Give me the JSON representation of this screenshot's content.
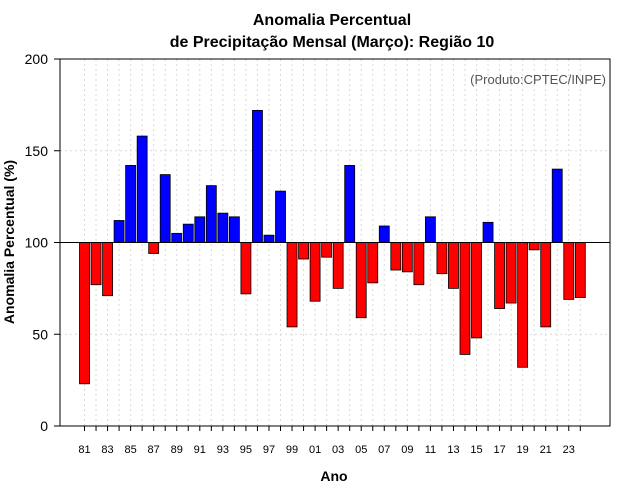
{
  "chart_data": {
    "type": "bar",
    "title_line1": "Anomalia Percentual",
    "title_line2": "de Precipitação Mensal (Março): Região 10",
    "xlabel": "Ano",
    "ylabel": "Anomalia Percentual (%)",
    "credit": "(Produto:CPTEC/INPE)",
    "ylim": [
      0,
      200
    ],
    "yticks": [
      0,
      50,
      100,
      150,
      200
    ],
    "baseline": 100,
    "xtick_labels": [
      "81",
      "83",
      "85",
      "87",
      "89",
      "91",
      "93",
      "95",
      "97",
      "99",
      "01",
      "03",
      "05",
      "07",
      "09",
      "11",
      "13",
      "15",
      "17",
      "19",
      "21",
      "23"
    ],
    "categories": [
      "81",
      "82",
      "83",
      "84",
      "85",
      "86",
      "87",
      "88",
      "89",
      "90",
      "91",
      "92",
      "93",
      "94",
      "95",
      "96",
      "97",
      "98",
      "99",
      "00",
      "01",
      "02",
      "03",
      "04",
      "05",
      "06",
      "07",
      "08",
      "09",
      "10",
      "11",
      "12",
      "13",
      "14",
      "15",
      "16",
      "17",
      "18",
      "19",
      "20",
      "21",
      "22",
      "23",
      "24"
    ],
    "values": [
      23,
      77,
      71,
      112,
      142,
      158,
      94,
      137,
      105,
      110,
      114,
      131,
      116,
      114,
      72,
      172,
      104,
      128,
      54,
      91,
      68,
      92,
      75,
      142,
      59,
      78,
      109,
      85,
      84,
      77,
      114,
      83,
      75,
      39,
      48,
      111,
      64,
      67,
      32,
      96,
      54,
      140,
      69,
      70
    ],
    "colors": {
      "above": "#0000ff",
      "below": "#ff0000",
      "outline": "#000000",
      "grid": "#d9d9d9"
    }
  }
}
